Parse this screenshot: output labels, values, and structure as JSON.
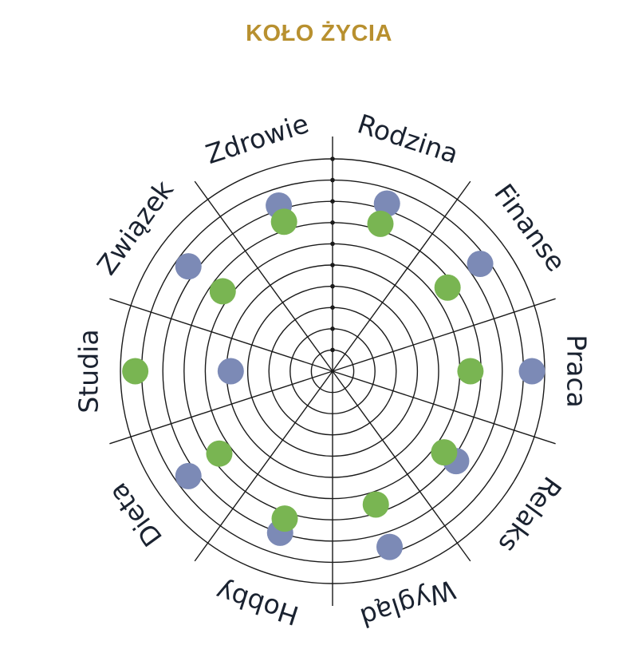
{
  "title": "KOŁO ŻYCIA",
  "colors": {
    "title": "#B8902F",
    "ring": "#1a1a1a",
    "label": "#1a2230",
    "series_a": "#7C8AB6",
    "series_b": "#79B552"
  },
  "chart_data": {
    "type": "radar-scatter",
    "levels": 10,
    "categories": [
      "Rodzina",
      "Finanse",
      "Praca",
      "Relaks",
      "Wygląd",
      "Hobby",
      "Dieta",
      "Studia",
      "Związek",
      "Zdrowie"
    ],
    "series": [
      {
        "color_key": "series_a",
        "values": [
          8.3,
          8.6,
          9.4,
          7.2,
          8.7,
          8.0,
          8.4,
          4.8,
          8.4,
          8.2
        ]
      },
      {
        "color_key": "series_b",
        "values": [
          7.3,
          6.7,
          6.5,
          6.5,
          6.6,
          7.3,
          6.6,
          9.3,
          6.4,
          7.4
        ]
      }
    ]
  }
}
